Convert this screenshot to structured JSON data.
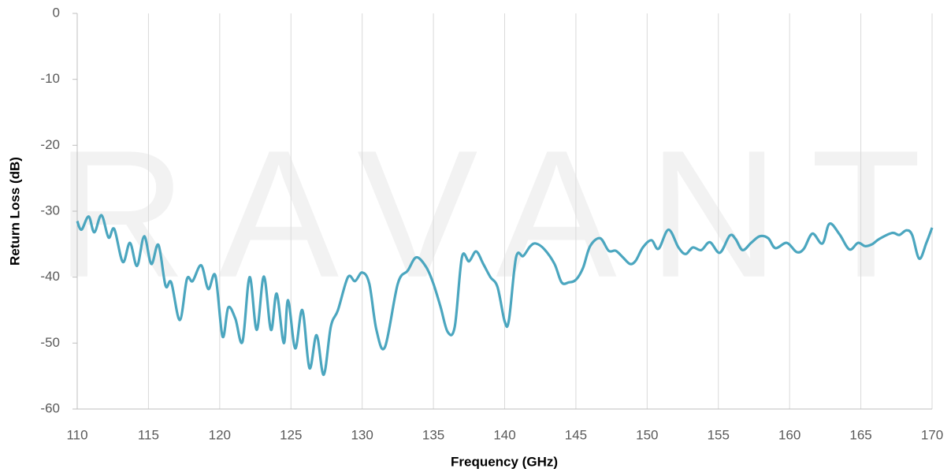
{
  "chart_data": {
    "type": "line",
    "watermark": "RAVANT",
    "x_label": "Frequency (GHz)",
    "y_label": "Return Loss (dB)",
    "xlim": [
      110,
      170
    ],
    "xticks": [
      110,
      115,
      120,
      125,
      130,
      135,
      140,
      145,
      150,
      155,
      160,
      165,
      170
    ],
    "ylim": [
      -60,
      0
    ],
    "yticks": [
      0,
      -10,
      -20,
      -30,
      -40,
      -50,
      -60
    ],
    "grid": true,
    "series": [
      {
        "name": "Return Loss",
        "color": "#4ba6bf",
        "x": [
          110,
          110.3,
          110.8,
          111.2,
          111.7,
          112.2,
          112.6,
          113.2,
          113.7,
          114.2,
          114.7,
          115.2,
          115.7,
          116.2,
          116.6,
          117.2,
          117.7,
          118.1,
          118.7,
          119.2,
          119.7,
          120.2,
          120.6,
          121.1,
          121.6,
          122.1,
          122.6,
          123.1,
          123.6,
          124.0,
          124.5,
          124.8,
          125.3,
          125.8,
          126.3,
          126.8,
          127.3,
          127.8,
          128.3,
          129,
          129.5,
          130,
          130.5,
          131,
          131.6,
          132.5,
          133.2,
          133.8,
          134.5,
          135,
          135.5,
          136,
          136.5,
          137,
          137.5,
          138,
          138.5,
          139,
          139.5,
          140,
          140.3,
          140.8,
          141.3,
          141.8,
          142.2,
          142.8,
          143.5,
          144,
          144.5,
          145,
          145.5,
          146,
          146.7,
          147.3,
          147.8,
          148.3,
          148.8,
          149.2,
          149.7,
          150.3,
          150.8,
          151.5,
          152.2,
          152.7,
          153.2,
          153.8,
          154.4,
          155.1,
          155.8,
          156.2,
          156.7,
          157.3,
          157.9,
          158.5,
          159,
          159.8,
          160.5,
          161,
          161.6,
          162.3,
          162.8,
          163.5,
          164.2,
          164.8,
          165.3,
          165.8,
          166.3,
          167.2,
          167.7,
          168.2,
          168.6,
          169.1,
          169.6,
          170
        ],
        "values": [
          -31.5,
          -32.8,
          -30.8,
          -33.2,
          -30.6,
          -34,
          -32.7,
          -37.7,
          -34.8,
          -38.3,
          -33.8,
          -38,
          -35.1,
          -41.3,
          -40.8,
          -46.5,
          -40.3,
          -40.6,
          -38.2,
          -41.8,
          -39.8,
          -49,
          -44.6,
          -46.3,
          -49.8,
          -40,
          -48,
          -39.9,
          -48,
          -42.5,
          -50,
          -43.5,
          -50.8,
          -45,
          -53.8,
          -48.8,
          -54.8,
          -47.5,
          -45,
          -40,
          -40.6,
          -39.3,
          -41,
          -48,
          -50.6,
          -41,
          -39,
          -37,
          -38.5,
          -41,
          -44.5,
          -48.3,
          -47.5,
          -37,
          -37.6,
          -36.1,
          -38,
          -40,
          -41.5,
          -46.7,
          -46.5,
          -37,
          -36.8,
          -35.3,
          -34.9,
          -35.8,
          -38,
          -40.8,
          -40.8,
          -40.4,
          -38.6,
          -35.3,
          -34.1,
          -36,
          -36,
          -37,
          -38,
          -37.5,
          -35.5,
          -34.4,
          -35.7,
          -32.8,
          -35.5,
          -36.5,
          -35.5,
          -35.9,
          -34.7,
          -36.3,
          -33.7,
          -34.2,
          -35.9,
          -34.8,
          -33.8,
          -34.1,
          -35.6,
          -34.8,
          -36.2,
          -35.7,
          -33.4,
          -34.9,
          -31.9,
          -33.5,
          -35.8,
          -34.8,
          -35.3,
          -35,
          -34.2,
          -33.3,
          -33.6,
          -32.9,
          -33.6,
          -37.2,
          -34.8,
          -32.5
        ]
      }
    ]
  }
}
